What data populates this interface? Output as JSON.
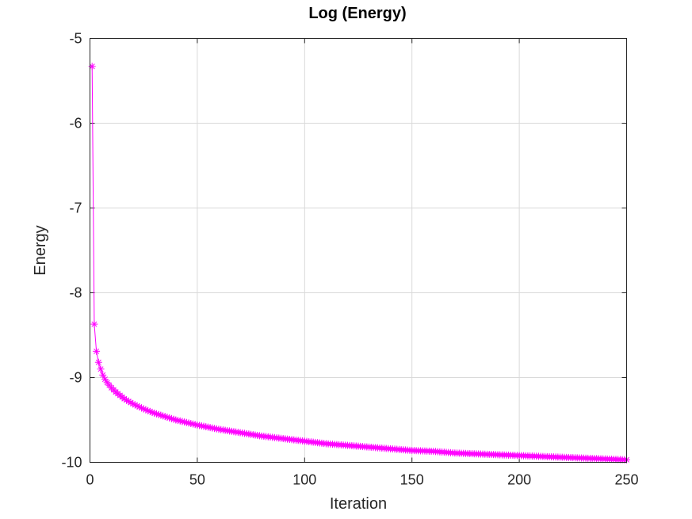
{
  "chart_data": {
    "type": "line",
    "title": "Log (Energy)",
    "xlabel": "Iteration",
    "ylabel": "Energy",
    "xlim": [
      0,
      250
    ],
    "ylim": [
      -10,
      -5
    ],
    "xticks": [
      0,
      50,
      100,
      150,
      200,
      250
    ],
    "yticks": [
      -10,
      -9,
      -8,
      -7,
      -6,
      -5
    ],
    "xtick_labels": [
      "0",
      "50",
      "100",
      "150",
      "200",
      "250"
    ],
    "ytick_labels": [
      "-10",
      "-9",
      "-8",
      "-7",
      "-6",
      "-5"
    ],
    "grid": true,
    "marker": "asterisk",
    "color": "#ff00ff",
    "series": [
      {
        "x": [
          1,
          2,
          3,
          4,
          5,
          6,
          7,
          8,
          9,
          10,
          12,
          14,
          16,
          18,
          20,
          25,
          30,
          35,
          40,
          45,
          50,
          60,
          70,
          80,
          90,
          100,
          110,
          120,
          130,
          140,
          150,
          160,
          170,
          180,
          190,
          200,
          210,
          220,
          230,
          240,
          250
        ],
        "y": [
          -5.33,
          -8.37,
          -8.69,
          -8.82,
          -8.9,
          -8.97,
          -9.02,
          -9.06,
          -9.09,
          -9.12,
          -9.17,
          -9.21,
          -9.25,
          -9.28,
          -9.31,
          -9.37,
          -9.42,
          -9.46,
          -9.5,
          -9.53,
          -9.56,
          -9.61,
          -9.65,
          -9.69,
          -9.72,
          -9.75,
          -9.78,
          -9.8,
          -9.82,
          -9.84,
          -9.86,
          -9.87,
          -9.89,
          -9.9,
          -9.91,
          -9.92,
          -9.93,
          -9.94,
          -9.95,
          -9.96,
          -9.97
        ]
      }
    ]
  }
}
